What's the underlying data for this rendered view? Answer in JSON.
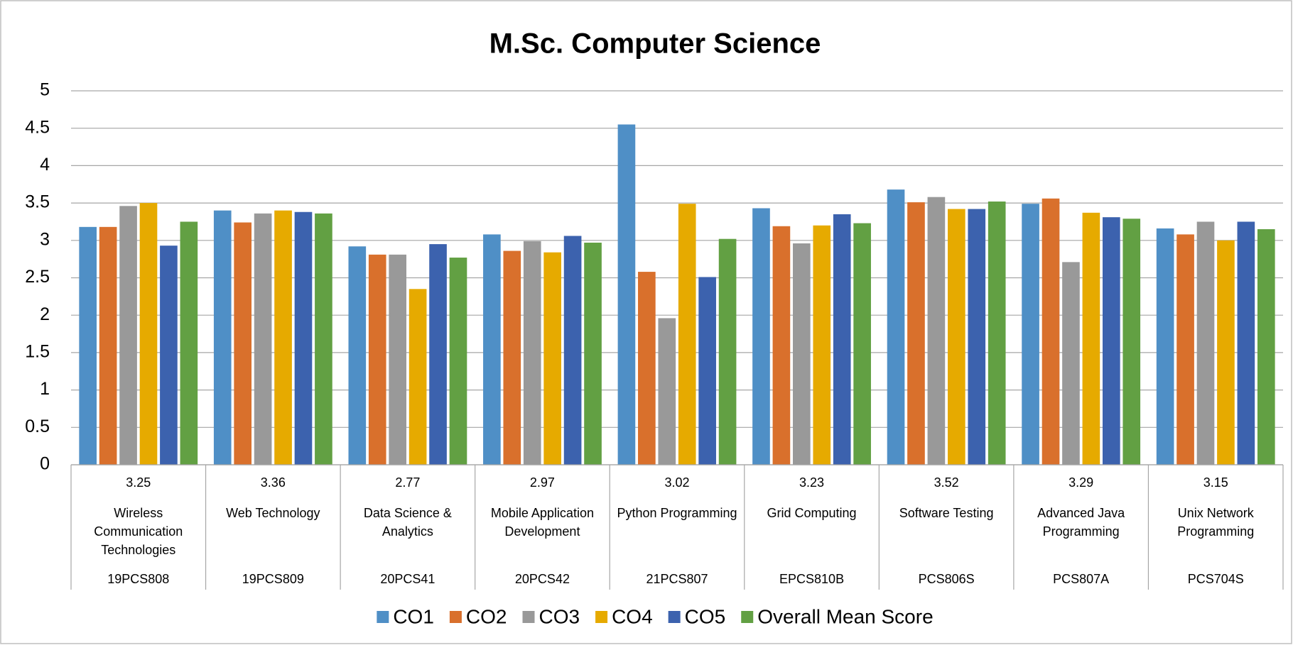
{
  "chart_data": {
    "type": "bar",
    "title": "M.Sc. Computer Science",
    "categories": [
      "Wireless Communication Technologies",
      "Web Technology",
      "Data Science & Analytics",
      "Mobile Application Development",
      "Python Programming",
      "Grid Computing",
      "Software Testing",
      "Advanced Java Programming",
      "Unix Network Programming"
    ],
    "category_codes": [
      "19PCS808",
      "19PCS809",
      "20PCS41",
      "20PCS42",
      "21PCS807",
      "EPCS810B",
      "PCS806S",
      "PCS807A",
      "PCS704S"
    ],
    "series": [
      {
        "name": "CO1",
        "color": "#4f8fc6",
        "values": [
          3.18,
          3.4,
          2.92,
          3.08,
          4.55,
          3.43,
          3.68,
          3.49,
          3.16
        ]
      },
      {
        "name": "CO2",
        "color": "#d9702c",
        "values": [
          3.18,
          3.24,
          2.81,
          2.86,
          2.58,
          3.19,
          3.51,
          3.56,
          3.08
        ]
      },
      {
        "name": "CO3",
        "color": "#999999",
        "values": [
          3.46,
          3.36,
          2.81,
          2.99,
          1.96,
          2.96,
          3.58,
          2.71,
          3.25
        ]
      },
      {
        "name": "CO4",
        "color": "#e6aa00",
        "values": [
          3.5,
          3.4,
          2.35,
          2.84,
          3.49,
          3.2,
          3.42,
          3.37,
          3.0
        ]
      },
      {
        "name": "CO5",
        "color": "#3c62ae",
        "values": [
          2.93,
          3.38,
          2.95,
          3.06,
          2.51,
          3.35,
          3.42,
          3.31,
          3.25
        ]
      },
      {
        "name": "Overall Mean Score",
        "color": "#62a043",
        "values": [
          3.25,
          3.36,
          2.77,
          2.97,
          3.02,
          3.23,
          3.52,
          3.29,
          3.15
        ]
      }
    ],
    "ylim": [
      0,
      5
    ],
    "yticks": [
      0,
      0.5,
      1,
      1.5,
      2,
      2.5,
      3,
      3.5,
      4,
      4.5,
      5
    ],
    "grid": true,
    "legend": "bottom"
  }
}
